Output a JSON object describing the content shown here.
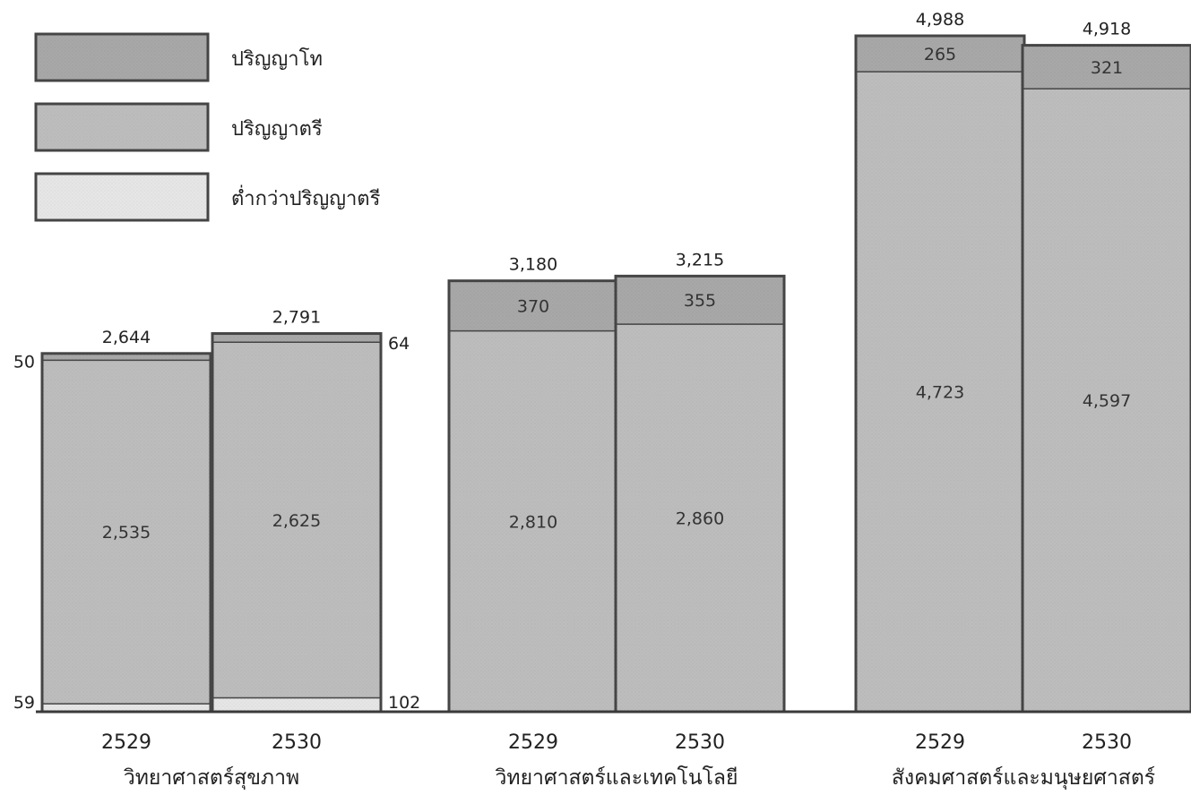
{
  "chart_data": {
    "type": "bar",
    "stacked": true,
    "legend_position": "top-left",
    "grid": false,
    "colors": {
      "master": "#a8a8a8",
      "bachelor": "#bdbdbd",
      "below_bachelor": "#e6e6e6",
      "outline": "#454545"
    },
    "series": [
      {
        "key": "master",
        "name": "ปริญญาโท"
      },
      {
        "key": "bachelor",
        "name": "ปริญญาตรี"
      },
      {
        "key": "below_bachelor",
        "name": "ต่ำกว่าปริญญาตรี"
      }
    ],
    "groups": [
      {
        "name": "วิทยาศาสตร์สุขภาพ",
        "bars": [
          {
            "year": "2529",
            "total": 2644,
            "total_label": "2,644",
            "master": 50,
            "master_label": "50",
            "bachelor": 2535,
            "bachelor_label": "2,535",
            "below_bachelor": 59,
            "below_bachelor_label": "59"
          },
          {
            "year": "2530",
            "total": 2791,
            "total_label": "2,791",
            "master": 64,
            "master_label": "64",
            "bachelor": 2625,
            "bachelor_label": "2,625",
            "below_bachelor": 102,
            "below_bachelor_label": "102"
          }
        ]
      },
      {
        "name": "วิทยาศาสตร์และเทคโนโลยี",
        "bars": [
          {
            "year": "2529",
            "total": 3180,
            "total_label": "3,180",
            "master": 370,
            "master_label": "370",
            "bachelor": 2810,
            "bachelor_label": "2,810",
            "below_bachelor": 0,
            "below_bachelor_label": ""
          },
          {
            "year": "2530",
            "total": 3215,
            "total_label": "3,215",
            "master": 355,
            "master_label": "355",
            "bachelor": 2860,
            "bachelor_label": "2,860",
            "below_bachelor": 0,
            "below_bachelor_label": ""
          }
        ]
      },
      {
        "name": "สังคมศาสตร์และมนุษยศาสตร์",
        "bars": [
          {
            "year": "2529",
            "total": 4988,
            "total_label": "4,988",
            "master": 265,
            "master_label": "265",
            "bachelor": 4723,
            "bachelor_label": "4,723",
            "below_bachelor": 0,
            "below_bachelor_label": ""
          },
          {
            "year": "2530",
            "total": 4918,
            "total_label": "4,918",
            "master": 321,
            "master_label": "321",
            "bachelor": 4597,
            "bachelor_label": "4,597",
            "below_bachelor": 0,
            "below_bachelor_label": ""
          }
        ]
      }
    ]
  }
}
